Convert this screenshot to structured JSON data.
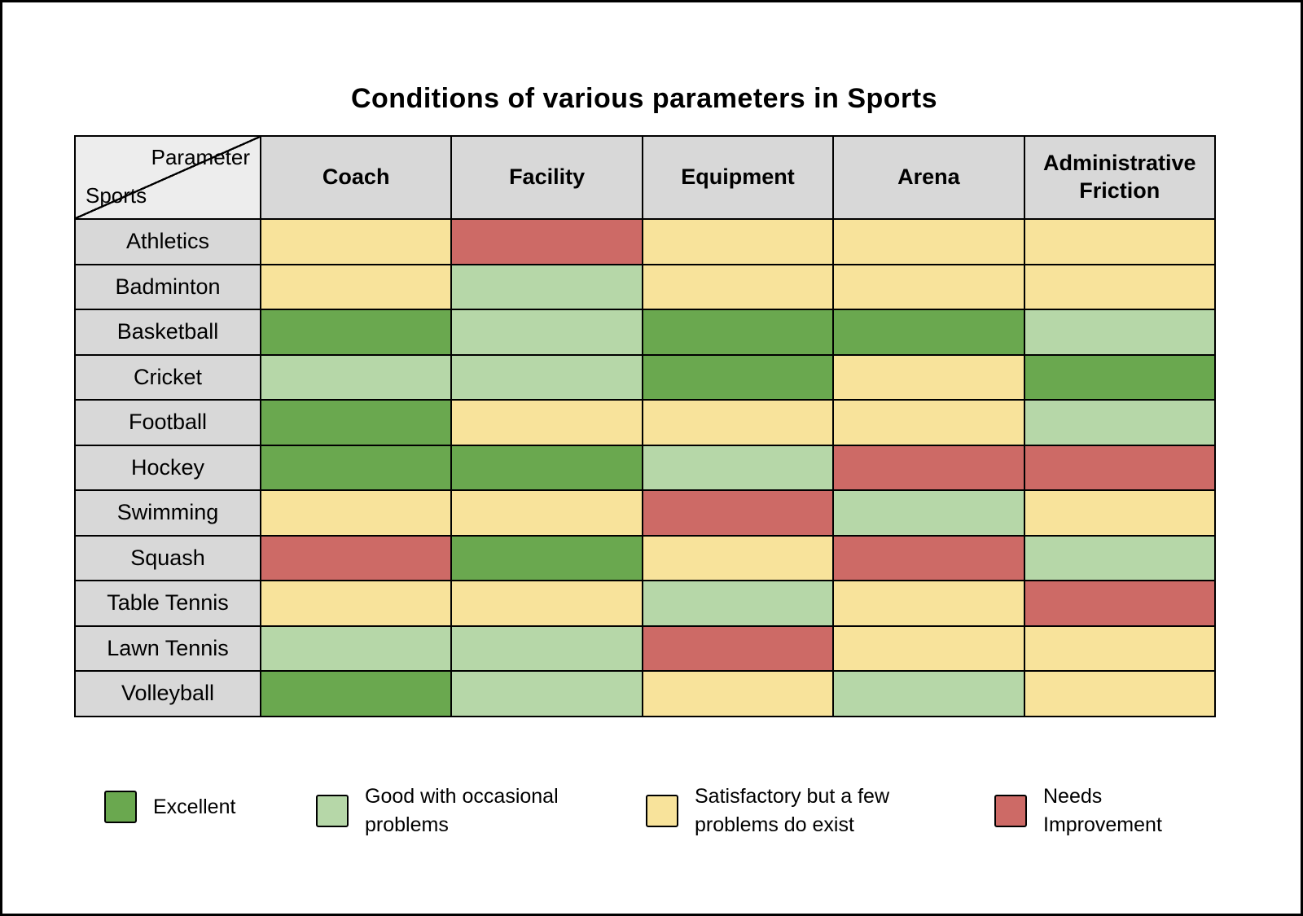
{
  "title": "Conditions of various parameters in Sports",
  "corner": {
    "top": "Parameter",
    "bottom": "Sports"
  },
  "chart_data": {
    "type": "heatmap",
    "title": "Conditions of various parameters in Sports",
    "columns": [
      "Coach",
      "Facility",
      "Equipment",
      "Arena",
      "Administrative Friction"
    ],
    "rows": [
      "Athletics",
      "Badminton",
      "Basketball",
      "Cricket",
      "Football",
      "Hockey",
      "Swimming",
      "Squash",
      "Table Tennis",
      "Lawn Tennis",
      "Volleyball"
    ],
    "values": [
      [
        "satisfactory",
        "needs_improvement",
        "satisfactory",
        "satisfactory",
        "satisfactory"
      ],
      [
        "satisfactory",
        "good",
        "satisfactory",
        "satisfactory",
        "satisfactory"
      ],
      [
        "excellent",
        "good",
        "excellent",
        "excellent",
        "good"
      ],
      [
        "good",
        "good",
        "excellent",
        "satisfactory",
        "excellent"
      ],
      [
        "excellent",
        "satisfactory",
        "satisfactory",
        "satisfactory",
        "good"
      ],
      [
        "excellent",
        "excellent",
        "good",
        "needs_improvement",
        "needs_improvement"
      ],
      [
        "satisfactory",
        "satisfactory",
        "needs_improvement",
        "good",
        "satisfactory"
      ],
      [
        "needs_improvement",
        "excellent",
        "satisfactory",
        "needs_improvement",
        "good"
      ],
      [
        "satisfactory",
        "satisfactory",
        "good",
        "satisfactory",
        "needs_improvement"
      ],
      [
        "good",
        "good",
        "needs_improvement",
        "satisfactory",
        "satisfactory"
      ],
      [
        "excellent",
        "good",
        "satisfactory",
        "good",
        "satisfactory"
      ]
    ],
    "colors": {
      "excellent": "#6aa84f",
      "good": "#b6d7a8",
      "satisfactory": "#f8e39b",
      "needs_improvement": "#cd6a66"
    },
    "legend": [
      {
        "key": "excellent",
        "label": "Excellent"
      },
      {
        "key": "good",
        "label": "Good with occasional problems"
      },
      {
        "key": "satisfactory",
        "label": "Satisfactory but a few problems do exist"
      },
      {
        "key": "needs_improvement",
        "label": "Needs Improvement"
      }
    ]
  }
}
